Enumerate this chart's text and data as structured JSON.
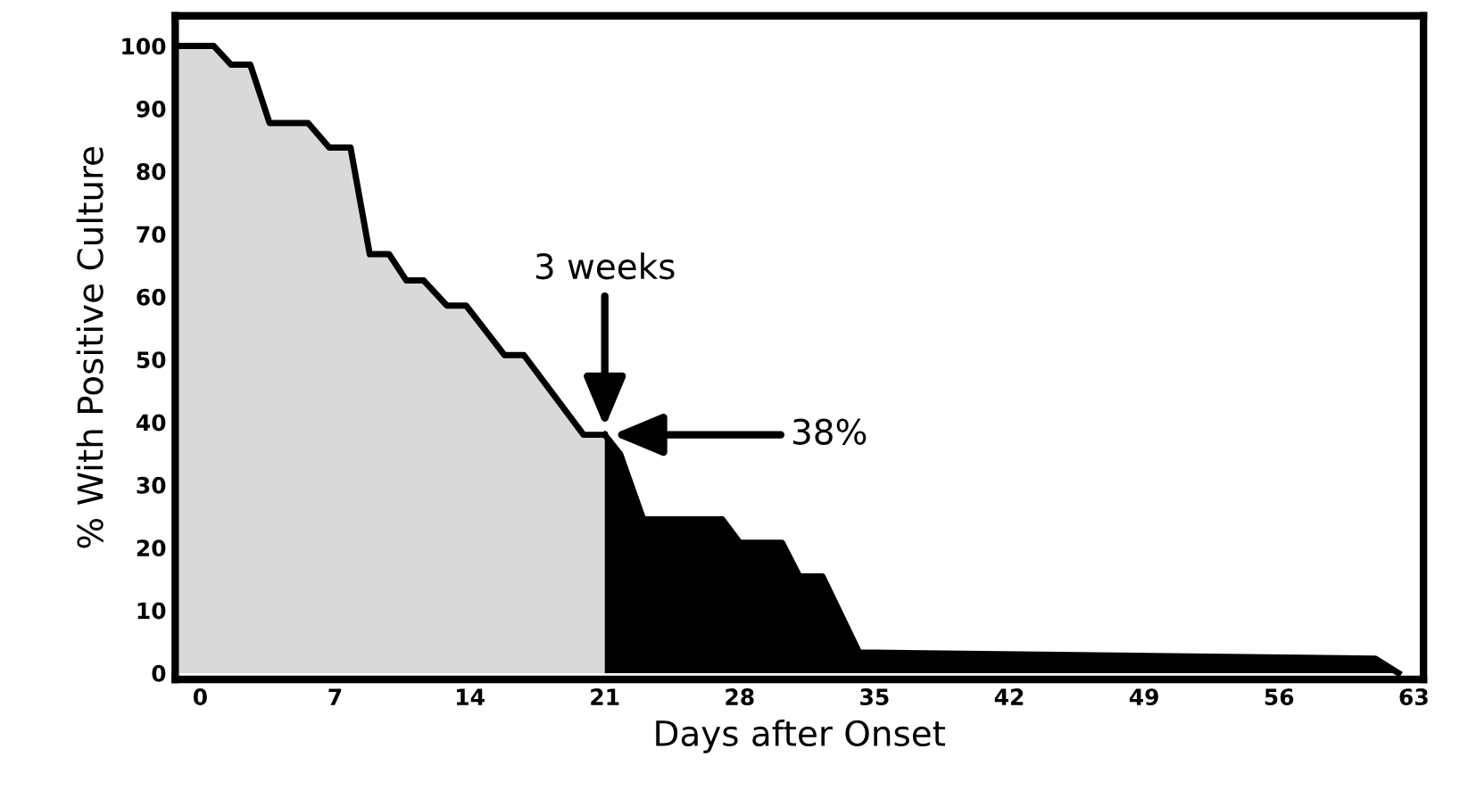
{
  "chart_data": {
    "type": "area",
    "xlabel": "Days after Onset",
    "ylabel": "% With Positive Culture",
    "series": [
      {
        "color": "#d9d9d9",
        "x": [
          -1.3,
          0.7,
          1.6,
          2.6,
          3.6,
          5.6,
          6.7,
          7.8,
          8.8,
          9.8,
          10.7,
          11.6,
          12.8,
          13.8,
          15.8,
          16.8,
          19.9,
          21
        ],
        "values": [
          100,
          100,
          97,
          97,
          87.7,
          87.7,
          83.8,
          83.8,
          66.8,
          66.8,
          62.6,
          62.6,
          58.6,
          58.6,
          50.7,
          50.7,
          38,
          38
        ]
      },
      {
        "color": "#000000",
        "x": [
          21,
          21.8,
          23,
          27.1,
          28,
          30.2,
          31.1,
          32.3,
          34.2,
          61,
          62.2
        ],
        "values": [
          38,
          34.9,
          24.5,
          24.5,
          20.8,
          20.8,
          15.4,
          15.4,
          3.3,
          2.3,
          0
        ]
      }
    ],
    "annotations": [
      "3 weeks",
      "38%"
    ],
    "xlim": [
      -1.3,
      63.5
    ],
    "ylim": [
      -1,
      104.8
    ],
    "xticks": [
      0,
      7,
      14,
      21,
      28,
      35,
      42,
      49,
      56,
      63
    ],
    "yticks": [
      0,
      10,
      20,
      30,
      40,
      50,
      60,
      70,
      80,
      90,
      100
    ],
    "grid": false,
    "legend": false
  }
}
